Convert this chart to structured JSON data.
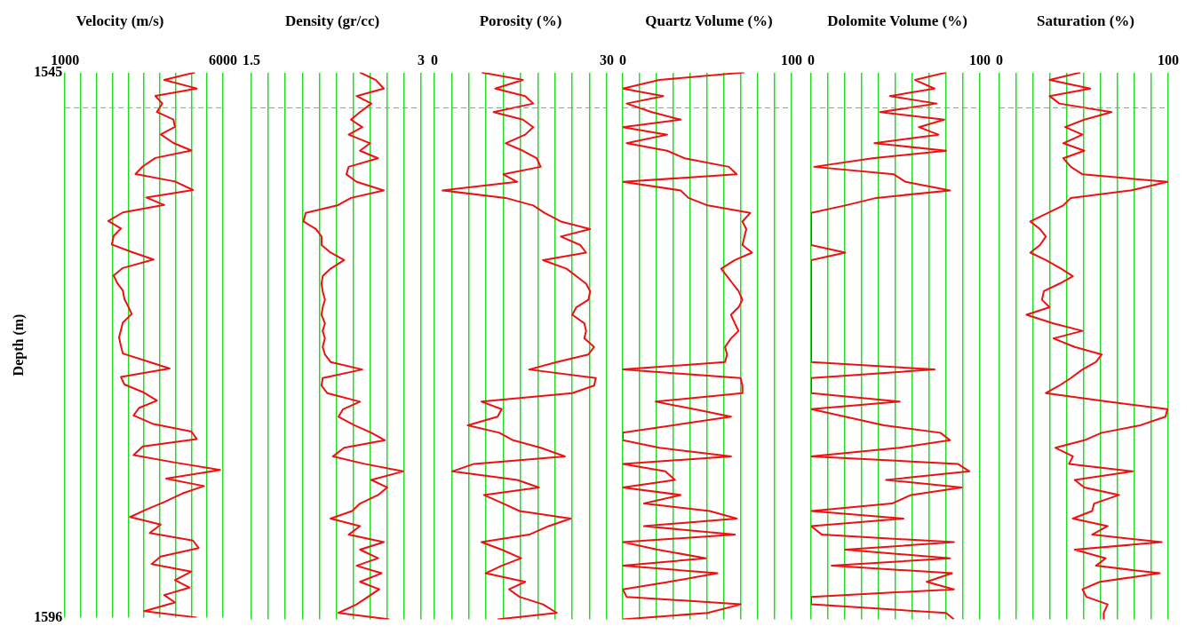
{
  "chart_data": [
    {
      "type": "line",
      "title": "Velocity (m/s)",
      "ylabel": "Depth (m)",
      "color": "#ee1111",
      "marker": "none",
      "line_style": "solid",
      "grid": "x",
      "legend": false,
      "xlim": [
        1000,
        6000
      ],
      "xticks": [
        1000,
        {
          "value": 1500,
          "label": null
        },
        {
          "value": 2000,
          "label": null
        },
        {
          "value": 2500,
          "label": null
        },
        {
          "value": 3000,
          "label": null
        },
        {
          "value": 3500,
          "label": null
        },
        {
          "value": 4000,
          "label": null
        },
        {
          "value": 4500,
          "label": null
        },
        {
          "value": 5000,
          "label": null
        },
        {
          "value": 5500,
          "label": null
        },
        6000
      ],
      "ylim": [
        1596,
        1545
      ],
      "yticks": [
        1545,
        1596
      ],
      "ref_lines": [
        {
          "axis": "y",
          "value": 1548.3,
          "color": "#33dd33",
          "line_style": "dashed"
        }
      ],
      "x": [
        5110,
        4140,
        5170,
        3860,
        4080,
        3910,
        4430,
        4480,
        4030,
        4430,
        5000,
        3860,
        3460,
        3230,
        4480,
        5050,
        3570,
        4140,
        2830,
        2370,
        2770,
        2540,
        2480,
        3110,
        3800,
        2830,
        2540,
        2650,
        2830,
        2880,
        3000,
        3110,
        2830,
        2770,
        2710,
        2770,
        2830,
        3570,
        4310,
        2770,
        2880,
        3460,
        3910,
        3340,
        3170,
        3800,
        5000,
        5170,
        3460,
        3170,
        4480,
        5910,
        4200,
        5400,
        4710,
        4140,
        3570,
        3060,
        4030,
        3680,
        5050,
        5230,
        4030,
        3740,
        5000,
        4480,
        4940,
        4140,
        4480,
        3510,
        5170
      ],
      "values": [
        1545.0,
        1545.7,
        1546.5,
        1547.2,
        1547.9,
        1548.7,
        1549.4,
        1550.1,
        1550.8,
        1551.6,
        1552.3,
        1553.0,
        1553.8,
        1554.5,
        1555.2,
        1556.0,
        1556.7,
        1557.4,
        1558.1,
        1558.9,
        1559.6,
        1560.3,
        1561.1,
        1561.8,
        1562.5,
        1563.3,
        1564.0,
        1564.7,
        1565.4,
        1566.2,
        1566.9,
        1567.6,
        1568.4,
        1569.1,
        1569.8,
        1570.6,
        1571.3,
        1572.0,
        1572.7,
        1573.5,
        1574.2,
        1574.9,
        1575.7,
        1576.4,
        1577.1,
        1577.9,
        1578.6,
        1579.3,
        1580.0,
        1580.8,
        1581.5,
        1582.2,
        1583.0,
        1583.7,
        1584.4,
        1585.2,
        1585.9,
        1586.6,
        1587.3,
        1588.1,
        1588.8,
        1589.5,
        1590.3,
        1591.0,
        1591.7,
        1592.5,
        1593.2,
        1593.9,
        1594.6,
        1595.4,
        1596.0
      ]
    },
    {
      "type": "line",
      "title": "Density (gr/cc)",
      "color": "#ee1111",
      "marker": "none",
      "line_style": "solid",
      "grid": "x",
      "legend": false,
      "tick_labels": "x",
      "xlim": [
        1.5,
        3
      ],
      "xticks": [
        1.5,
        {
          "value": 1.65,
          "label": null
        },
        {
          "value": 1.8,
          "label": null
        },
        {
          "value": 1.95,
          "label": null
        },
        {
          "value": 2.1,
          "label": null
        },
        {
          "value": 2.25,
          "label": null
        },
        {
          "value": 2.4,
          "label": null
        },
        {
          "value": 2.55,
          "label": null
        },
        {
          "value": 2.7,
          "label": null
        },
        {
          "value": 2.85,
          "label": null
        },
        3
      ],
      "ylim": [
        1596,
        1545
      ],
      "ref_lines": [
        {
          "axis": "y",
          "value": 1548.3,
          "color": "#33dd33",
          "line_style": "dashed"
        }
      ],
      "x": [
        2.46,
        2.6,
        2.67,
        2.43,
        2.56,
        2.46,
        2.38,
        2.48,
        2.36,
        2.55,
        2.46,
        2.62,
        2.36,
        2.34,
        2.43,
        2.67,
        2.38,
        2.26,
        1.98,
        1.96,
        2.07,
        2.12,
        2.12,
        2.2,
        2.32,
        2.2,
        2.13,
        2.12,
        2.13,
        2.15,
        2.13,
        2.12,
        2.15,
        2.13,
        2.15,
        2.13,
        2.15,
        2.2,
        2.48,
        2.13,
        2.12,
        2.17,
        2.46,
        2.31,
        2.27,
        2.41,
        2.56,
        2.68,
        2.32,
        2.22,
        2.5,
        2.84,
        2.56,
        2.7,
        2.62,
        2.46,
        2.39,
        2.2,
        2.46,
        2.36,
        2.67,
        2.46,
        2.62,
        2.43,
        2.65,
        2.46,
        2.63,
        2.53,
        2.43,
        2.27,
        2.72
      ],
      "values": [
        1545.0,
        1545.7,
        1546.5,
        1547.2,
        1547.9,
        1548.7,
        1549.4,
        1550.1,
        1550.8,
        1551.6,
        1552.3,
        1553.0,
        1553.8,
        1554.5,
        1555.2,
        1556.0,
        1556.7,
        1557.4,
        1558.1,
        1558.9,
        1559.6,
        1560.3,
        1561.1,
        1561.8,
        1562.5,
        1563.3,
        1564.0,
        1564.7,
        1565.4,
        1566.2,
        1566.9,
        1567.6,
        1568.4,
        1569.1,
        1569.8,
        1570.6,
        1571.3,
        1572.0,
        1572.7,
        1573.5,
        1574.2,
        1574.9,
        1575.7,
        1576.4,
        1577.1,
        1577.9,
        1578.6,
        1579.3,
        1580.0,
        1580.8,
        1581.5,
        1582.2,
        1583.0,
        1583.7,
        1584.4,
        1585.2,
        1585.9,
        1586.6,
        1587.3,
        1588.1,
        1588.8,
        1589.5,
        1590.3,
        1591.0,
        1591.7,
        1592.5,
        1593.2,
        1593.9,
        1594.6,
        1595.4,
        1596.0
      ]
    },
    {
      "type": "line",
      "title": "Porosity (%)",
      "color": "#ee1111",
      "marker": "none",
      "line_style": "solid",
      "grid": "x",
      "legend": false,
      "tick_labels": "x",
      "xlim": [
        0,
        30
      ],
      "xticks": [
        0,
        {
          "value": 3,
          "label": null
        },
        {
          "value": 6,
          "label": null
        },
        {
          "value": 9,
          "label": null
        },
        {
          "value": 12,
          "label": null
        },
        {
          "value": 15,
          "label": null
        },
        {
          "value": 18,
          "label": null
        },
        {
          "value": 21,
          "label": null
        },
        {
          "value": 24,
          "label": null
        },
        {
          "value": 27,
          "label": null
        },
        30
      ],
      "ylim": [
        1596,
        1545
      ],
      "ref_lines": [
        {
          "axis": "y",
          "value": 1548.3,
          "color": "#33dd33",
          "line_style": "dashed"
        }
      ],
      "x": [
        8.2,
        15.4,
        10.6,
        15.8,
        17.2,
        10.3,
        15.4,
        17.2,
        15.8,
        12.4,
        15.4,
        17.8,
        18.5,
        12.0,
        14.4,
        1.4,
        12.4,
        17.2,
        19.2,
        22.0,
        27.1,
        22.0,
        25.4,
        26.4,
        18.9,
        23.0,
        24.7,
        26.4,
        27.1,
        26.8,
        24.7,
        24.0,
        26.1,
        26.4,
        26.1,
        27.8,
        26.8,
        21.3,
        16.5,
        28.1,
        27.8,
        24.0,
        8.2,
        11.7,
        11.0,
        5.8,
        11.3,
        13.7,
        18.5,
        22.7,
        6.9,
        3.1,
        14.4,
        18.2,
        8.6,
        12.0,
        14.8,
        23.7,
        19.9,
        16.5,
        8.2,
        11.7,
        15.1,
        11.7,
        8.9,
        15.8,
        13.0,
        14.8,
        18.9,
        21.3,
        11.0
      ],
      "values": [
        1545.0,
        1545.7,
        1546.5,
        1547.2,
        1547.9,
        1548.7,
        1549.4,
        1550.1,
        1550.8,
        1551.6,
        1552.3,
        1553.0,
        1553.8,
        1554.5,
        1555.2,
        1556.0,
        1556.7,
        1557.4,
        1558.1,
        1558.9,
        1559.6,
        1560.3,
        1561.1,
        1561.8,
        1562.5,
        1563.3,
        1564.0,
        1564.7,
        1565.4,
        1566.2,
        1566.9,
        1567.6,
        1568.4,
        1569.1,
        1569.8,
        1570.6,
        1571.3,
        1572.0,
        1572.7,
        1573.5,
        1574.2,
        1574.9,
        1575.7,
        1576.4,
        1577.1,
        1577.9,
        1578.6,
        1579.3,
        1580.0,
        1580.8,
        1581.5,
        1582.2,
        1583.0,
        1583.7,
        1584.4,
        1585.2,
        1585.9,
        1586.6,
        1587.3,
        1588.1,
        1588.8,
        1589.5,
        1590.3,
        1591.0,
        1591.7,
        1592.5,
        1593.2,
        1593.9,
        1594.6,
        1595.4,
        1596.0
      ]
    },
    {
      "type": "line",
      "title": "Quartz Volume (%)",
      "color": "#ee1111",
      "marker": "none",
      "line_style": "solid",
      "grid": "x",
      "legend": false,
      "tick_labels": "x",
      "xlim": [
        0,
        100
      ],
      "xticks": [
        0,
        {
          "value": 10,
          "label": null
        },
        {
          "value": 20,
          "label": null
        },
        {
          "value": 30,
          "label": null
        },
        {
          "value": 40,
          "label": null
        },
        {
          "value": 50,
          "label": null
        },
        {
          "value": 60,
          "label": null
        },
        {
          "value": 70,
          "label": null
        },
        {
          "value": 80,
          "label": null
        },
        {
          "value": 90,
          "label": null
        },
        100
      ],
      "ylim": [
        1596,
        1545
      ],
      "ref_lines": [
        {
          "axis": "y",
          "value": 1548.3,
          "color": "#33dd33",
          "line_style": "dashed"
        }
      ],
      "x": [
        72,
        21.7,
        0,
        24.0,
        2.3,
        17.2,
        34.3,
        0,
        26.3,
        2.3,
        26.3,
        36.6,
        62.9,
        67.5,
        0,
        34.3,
        38.9,
        50.3,
        75.5,
        70.9,
        73.2,
        72.1,
        70.9,
        76.6,
        66.4,
        58.3,
        61.8,
        65.2,
        68.6,
        70.9,
        68.6,
        64.1,
        66.4,
        68.6,
        64.1,
        60.6,
        61.8,
        60.6,
        0,
        69.8,
        70.9,
        70.9,
        19.5,
        42.3,
        64.1,
        29.7,
        0,
        0,
        21.7,
        64.1,
        0,
        25.2,
        30.9,
        0,
        34.3,
        12.6,
        51.5,
        67.5,
        12.6,
        66.4,
        0,
        20.6,
        49.2,
        0,
        56.1,
        27.5,
        0,
        2.3,
        69.8,
        50.3,
        0
      ],
      "values": [
        1545.0,
        1545.7,
        1546.5,
        1547.2,
        1547.9,
        1548.7,
        1549.4,
        1550.1,
        1550.8,
        1551.6,
        1552.3,
        1553.0,
        1553.8,
        1554.5,
        1555.2,
        1556.0,
        1556.7,
        1557.4,
        1558.1,
        1558.9,
        1559.6,
        1560.3,
        1561.1,
        1561.8,
        1562.5,
        1563.3,
        1564.0,
        1564.7,
        1565.4,
        1566.2,
        1566.9,
        1567.6,
        1568.4,
        1569.1,
        1569.8,
        1570.6,
        1571.3,
        1572.0,
        1572.7,
        1573.5,
        1574.2,
        1574.9,
        1575.7,
        1576.4,
        1577.1,
        1577.9,
        1578.6,
        1579.3,
        1580.0,
        1580.8,
        1581.5,
        1582.2,
        1583.0,
        1583.7,
        1584.4,
        1585.2,
        1585.9,
        1586.6,
        1587.3,
        1588.1,
        1588.8,
        1589.5,
        1590.3,
        1591.0,
        1591.7,
        1592.5,
        1593.2,
        1593.9,
        1594.6,
        1595.4,
        1596.0
      ]
    },
    {
      "type": "line",
      "title": "Dolomite Volume (%)",
      "color": "#ee1111",
      "marker": "none",
      "line_style": "solid",
      "grid": "x",
      "legend": false,
      "tick_labels": "x",
      "xlim": [
        0,
        100
      ],
      "xticks": [
        0,
        {
          "value": 10,
          "label": null
        },
        {
          "value": 20,
          "label": null
        },
        {
          "value": 30,
          "label": null
        },
        {
          "value": 40,
          "label": null
        },
        {
          "value": 50,
          "label": null
        },
        {
          "value": 60,
          "label": null
        },
        {
          "value": 70,
          "label": null
        },
        {
          "value": 80,
          "label": null
        },
        {
          "value": 90,
          "label": null
        },
        100
      ],
      "ylim": [
        1596,
        1545
      ],
      "ref_lines": [
        {
          "axis": "y",
          "value": 1548.3,
          "color": "#33dd33",
          "line_style": "dashed"
        }
      ],
      "x": [
        80.0,
        61.6,
        73.1,
        46.7,
        74.3,
        40.9,
        78.9,
        63.9,
        75.4,
        37.5,
        80.0,
        36.3,
        1.8,
        49.0,
        55.9,
        82.3,
        38.6,
        20.2,
        0,
        0,
        0,
        0,
        0,
        20.2,
        0,
        0,
        0,
        0,
        0,
        0,
        0,
        0,
        0,
        0,
        0,
        0,
        0,
        0,
        73.1,
        0,
        0,
        0,
        52.4,
        0,
        20.2,
        43.2,
        76.6,
        82.3,
        52.4,
        0,
        86.9,
        93.8,
        44.4,
        89.2,
        59.3,
        47.8,
        0,
        54.7,
        0,
        6.4,
        84.6,
        20.2,
        82.3,
        12.2,
        83.5,
        68.5,
        84.6,
        0,
        0,
        80.0,
        84.6
      ],
      "values": [
        1545.0,
        1545.7,
        1546.5,
        1547.2,
        1547.9,
        1548.7,
        1549.4,
        1550.1,
        1550.8,
        1551.6,
        1552.3,
        1553.0,
        1553.8,
        1554.5,
        1555.2,
        1556.0,
        1556.7,
        1557.4,
        1558.1,
        1558.9,
        1559.6,
        1560.3,
        1561.1,
        1561.8,
        1562.5,
        1563.3,
        1564.0,
        1564.7,
        1565.4,
        1566.2,
        1566.9,
        1567.6,
        1568.4,
        1569.1,
        1569.8,
        1570.6,
        1571.3,
        1572.0,
        1572.7,
        1573.5,
        1574.2,
        1574.9,
        1575.7,
        1576.4,
        1577.1,
        1577.9,
        1578.6,
        1579.3,
        1580.0,
        1580.8,
        1581.5,
        1582.2,
        1583.0,
        1583.7,
        1584.4,
        1585.2,
        1585.9,
        1586.6,
        1587.3,
        1588.1,
        1588.8,
        1589.5,
        1590.3,
        1591.0,
        1591.7,
        1592.5,
        1593.2,
        1593.9,
        1594.6,
        1595.4,
        1596.0
      ]
    },
    {
      "type": "line",
      "title": "Saturation (%)",
      "color": "#ee1111",
      "marker": "none",
      "line_style": "solid",
      "grid": "x",
      "legend": false,
      "tick_labels": "x",
      "xlim": [
        0,
        100
      ],
      "xticks": [
        0,
        {
          "value": 10,
          "label": null
        },
        {
          "value": 20,
          "label": null
        },
        {
          "value": 30,
          "label": null
        },
        {
          "value": 40,
          "label": null
        },
        {
          "value": 50,
          "label": null
        },
        {
          "value": 60,
          "label": null
        },
        {
          "value": 70,
          "label": null
        },
        {
          "value": 80,
          "label": null
        },
        {
          "value": 90,
          "label": null
        },
        100
      ],
      "ylim": [
        1596,
        1545
      ],
      "ref_lines": [
        {
          "axis": "y",
          "value": 1548.3,
          "color": "#33dd33",
          "line_style": "dashed"
        }
      ],
      "x": [
        48.0,
        29.7,
        53.8,
        29.7,
        35.5,
        66.4,
        50.3,
        38.9,
        49.2,
        37.8,
        50.3,
        37.8,
        42.3,
        49.2,
        99.5,
        77.8,
        42.3,
        37.8,
        28.6,
        18.3,
        24.0,
        27.5,
        24.0,
        18.3,
        27.5,
        36.6,
        43.5,
        35.5,
        26.3,
        25.2,
        29.7,
        16.0,
        32.0,
        49.2,
        32.0,
        44.6,
        60.6,
        57.2,
        49.2,
        42.3,
        35.5,
        27.5,
        64.1,
        99.5,
        98.4,
        83.5,
        60.6,
        50.3,
        33.2,
        43.5,
        41.2,
        78.9,
        44.6,
        50.3,
        70.9,
        56.1,
        54.9,
        43.5,
        64.1,
        54.9,
        96.1,
        44.6,
        62.9,
        57.2,
        95.0,
        59.5,
        49.2,
        51.5,
        64.1,
        61.8,
        61.8
      ],
      "values": [
        1545.0,
        1545.7,
        1546.5,
        1547.2,
        1547.9,
        1548.7,
        1549.4,
        1550.1,
        1550.8,
        1551.6,
        1552.3,
        1553.0,
        1553.8,
        1554.5,
        1555.2,
        1556.0,
        1556.7,
        1557.4,
        1558.1,
        1558.9,
        1559.6,
        1560.3,
        1561.1,
        1561.8,
        1562.5,
        1563.3,
        1564.0,
        1564.7,
        1565.4,
        1566.2,
        1566.9,
        1567.6,
        1568.4,
        1569.1,
        1569.8,
        1570.6,
        1571.3,
        1572.0,
        1572.7,
        1573.5,
        1574.2,
        1574.9,
        1575.7,
        1576.4,
        1577.1,
        1577.9,
        1578.6,
        1579.3,
        1580.0,
        1580.8,
        1581.5,
        1582.2,
        1583.0,
        1583.7,
        1584.4,
        1585.2,
        1585.9,
        1586.6,
        1587.3,
        1588.1,
        1588.8,
        1589.5,
        1590.3,
        1591.0,
        1591.7,
        1592.5,
        1593.2,
        1593.9,
        1594.6,
        1595.4,
        1596.0
      ]
    }
  ]
}
